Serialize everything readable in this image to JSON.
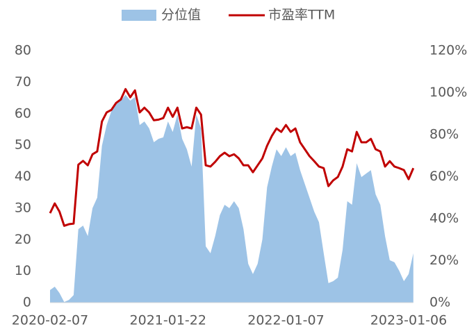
{
  "chart_data": {
    "type": "line",
    "categories": [
      "2020-02-07",
      null,
      null,
      null,
      null,
      null,
      null,
      null,
      null,
      null,
      null,
      null,
      null,
      null,
      null,
      null,
      null,
      null,
      null,
      null,
      null,
      null,
      null,
      null,
      null,
      "2021-01-22",
      null,
      null,
      null,
      null,
      null,
      null,
      null,
      null,
      null,
      null,
      null,
      null,
      null,
      null,
      null,
      null,
      null,
      null,
      null,
      null,
      null,
      null,
      null,
      null,
      "2022-01-07",
      null,
      null,
      null,
      null,
      null,
      null,
      null,
      null,
      null,
      null,
      null,
      null,
      null,
      null,
      null,
      null,
      null,
      null,
      null,
      null,
      null,
      null,
      null,
      null,
      null,
      "2023-01-06",
      null
    ],
    "series": [
      {
        "name": "分位值",
        "type": "area",
        "axis": "y2",
        "color": "#9dc3e6",
        "values": [
          6,
          7.6,
          4.6,
          0.3,
          1.3,
          3.6,
          35,
          36.7,
          31.7,
          45,
          50,
          74.7,
          84.6,
          91.2,
          94.5,
          96.2,
          99,
          96.2,
          97.9,
          84.6,
          86.3,
          83,
          76.4,
          78,
          78.7,
          86.3,
          81.3,
          89.6,
          78,
          73,
          64.8,
          89.6,
          83,
          26.8,
          23.5,
          31.7,
          41.7,
          46.6,
          45,
          48.3,
          45,
          35,
          18.5,
          13.6,
          18.5,
          30.1,
          54.9,
          64.8,
          73,
          69.8,
          74,
          69.8,
          71.4,
          63.1,
          56.5,
          49.9,
          43.3,
          38.3,
          23.5,
          9.3,
          10.2,
          11.9,
          25.1,
          48.3,
          46.6,
          66.4,
          59.8,
          61.5,
          63.1,
          51.6,
          46.6,
          31.7,
          20.2,
          19.2,
          15.2,
          10.2,
          13.6,
          23.5
        ]
      },
      {
        "name": "市盈率TTM",
        "type": "line",
        "axis": "y",
        "color": "#c00000",
        "values": [
          28.4,
          31.5,
          28.9,
          24.4,
          24.9,
          25.1,
          43.8,
          45,
          43.6,
          47.1,
          48,
          57.5,
          60.4,
          61.2,
          63.4,
          64.5,
          67.8,
          65.2,
          67.4,
          60.4,
          61.9,
          60.4,
          57.9,
          58.1,
          58.6,
          61.9,
          59,
          61.9,
          55.3,
          55.7,
          55.3,
          61.9,
          59.7,
          43.6,
          43.2,
          44.7,
          46.5,
          47.6,
          46.5,
          47.1,
          45.8,
          43.6,
          43.6,
          41.4,
          43.6,
          45.8,
          49.8,
          52.9,
          55.3,
          54.2,
          56.4,
          54.2,
          55.3,
          50.9,
          48.7,
          46.5,
          44.9,
          43.2,
          42.7,
          37,
          38.8,
          39.9,
          43.2,
          48.7,
          48,
          54.2,
          50.9,
          50.9,
          52,
          48.7,
          48,
          43.2,
          44.9,
          43.2,
          42.7,
          42.1,
          39.2,
          42.7
        ]
      }
    ],
    "ylim": [
      0,
      80
    ],
    "yticks": [
      0,
      10,
      20,
      30,
      40,
      50,
      60,
      70,
      80
    ],
    "y2lim": [
      0,
      120
    ],
    "y2ticks": [
      {
        "value": 0,
        "label": "0%"
      },
      {
        "value": 20,
        "label": "20%"
      },
      {
        "value": 40,
        "label": "40%"
      },
      {
        "value": 60,
        "label": "60%"
      },
      {
        "value": 80,
        "label": "80%"
      },
      {
        "value": 100,
        "label": "100%"
      },
      {
        "value": 120,
        "label": "120%"
      }
    ],
    "grid": false,
    "legend": "top"
  }
}
